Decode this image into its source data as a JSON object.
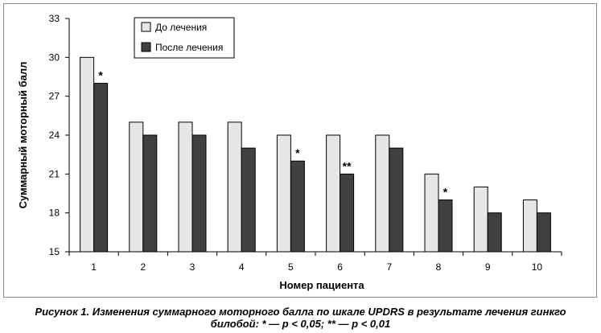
{
  "chart_data": {
    "type": "bar",
    "ylabel": "Суммарный моторный балл",
    "xlabel": "Номер пациента",
    "categories": [
      "1",
      "2",
      "3",
      "4",
      "5",
      "6",
      "7",
      "8",
      "9",
      "10"
    ],
    "series": [
      {
        "name": "До лечения",
        "color": "#e6e6e6",
        "values": [
          30,
          25,
          25,
          25,
          24,
          24,
          24,
          21,
          20,
          19
        ]
      },
      {
        "name": "После лечения",
        "color": "#404040",
        "values": [
          28,
          24,
          24,
          23,
          22,
          21,
          23,
          19,
          18,
          18
        ]
      }
    ],
    "significance": [
      "*",
      "",
      "",
      "",
      "*",
      "**",
      "",
      "*",
      "",
      ""
    ],
    "ylim": [
      15,
      33
    ],
    "yticks": [
      15,
      18,
      21,
      24,
      27,
      30,
      33
    ],
    "grid": false,
    "legend_position": "top-left"
  },
  "caption": {
    "line1": "Рисунок 1. Изменения суммарного моторного балла по шкале UPDRS в результате лечения гинкго",
    "line2": "билобой: * — p < 0,05; ** — p < 0,01"
  }
}
